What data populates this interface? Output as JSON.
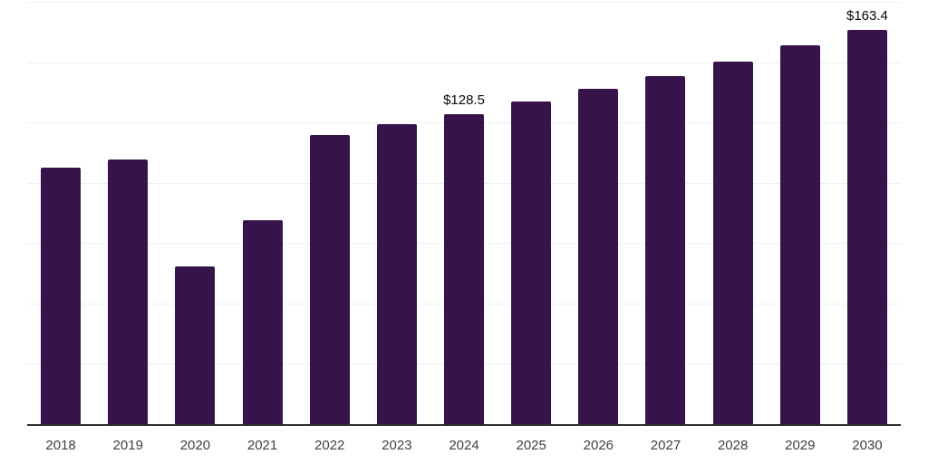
{
  "chart_data": {
    "type": "bar",
    "title": "",
    "xlabel": "",
    "ylabel": "",
    "categories": [
      "2018",
      "2019",
      "2020",
      "2021",
      "2022",
      "2023",
      "2024",
      "2025",
      "2026",
      "2027",
      "2028",
      "2029",
      "2030"
    ],
    "values": [
      106.2,
      109.5,
      65.3,
      84.5,
      119.9,
      124.2,
      128.5,
      133.8,
      138.9,
      144.1,
      150.1,
      157.0,
      163.4
    ],
    "data_labels": {
      "2024": "$128.5",
      "2030": "$163.4"
    },
    "ylim": [
      0,
      175
    ],
    "gridline_values": [
      25,
      50,
      75,
      100,
      125,
      150,
      175
    ],
    "grid": "horizontal-only",
    "legend": "none",
    "y_tick_labels_visible": false,
    "colors": {
      "bar": "#36134b",
      "axis_line": "#2e2e2e",
      "gridline": "#f1eff2",
      "tick_label": "#3f3f3f",
      "data_label": "#0a0a0a",
      "background": "#ffffff"
    }
  }
}
